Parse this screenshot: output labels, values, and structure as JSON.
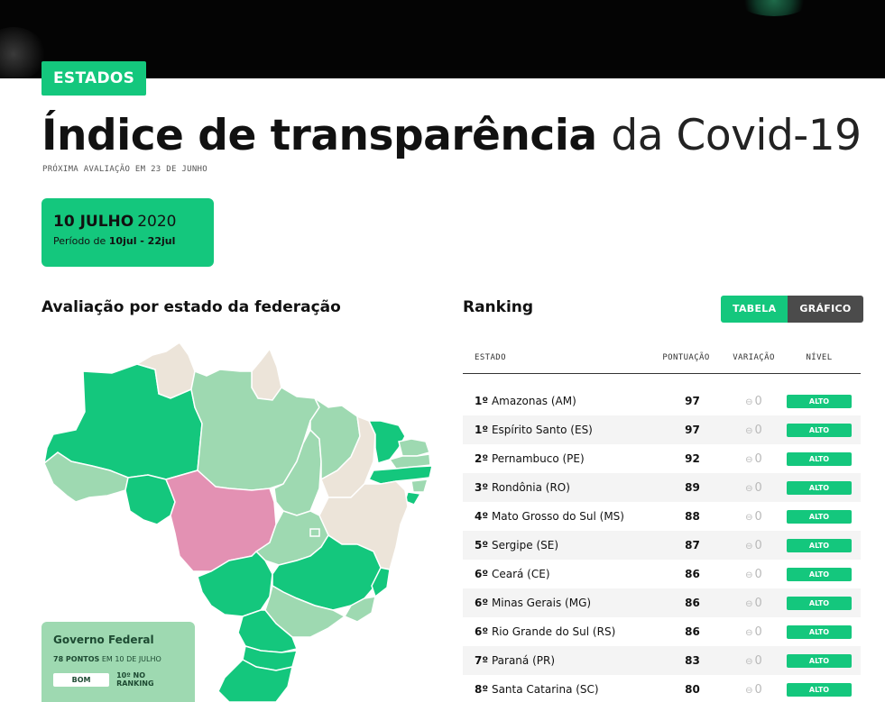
{
  "header": {
    "badge": "ESTADOS",
    "title_bold": "Índice de transparência",
    "title_light": "da Covid-19",
    "next_evaluation": "PRÓXIMA AVALIAÇÃO EM 23 DE JUNHO"
  },
  "period": {
    "date_bold": "10 JULHO",
    "year": "2020",
    "range_prefix": "Período de",
    "range_value": "10jul - 22jul"
  },
  "map_section": {
    "title": "Avaliação por estado da federação"
  },
  "federal": {
    "name": "Governo Federal",
    "points_bold": "78 PONTOS",
    "points_rest": "EM 10 DE JULHO",
    "rating": "BOM",
    "ranking": "10º NO RANKING"
  },
  "ranking": {
    "title": "Ranking",
    "toggle": {
      "table": "TABELA",
      "chart": "GRÁFICO"
    },
    "columns": {
      "state": "ESTADO",
      "score": "PONTUAÇÃO",
      "variation": "VARIAÇÃO",
      "level": "NÍVEL"
    },
    "rows": [
      {
        "pos": "1º",
        "state": "Amazonas (AM)",
        "score": "97",
        "variation": "0",
        "level": "ALTO"
      },
      {
        "pos": "1º",
        "state": "Espírito Santo (ES)",
        "score": "97",
        "variation": "0",
        "level": "ALTO"
      },
      {
        "pos": "2º",
        "state": "Pernambuco (PE)",
        "score": "92",
        "variation": "0",
        "level": "ALTO"
      },
      {
        "pos": "3º",
        "state": "Rondônia (RO)",
        "score": "89",
        "variation": "0",
        "level": "ALTO"
      },
      {
        "pos": "4º",
        "state": "Mato Grosso do Sul (MS)",
        "score": "88",
        "variation": "0",
        "level": "ALTO"
      },
      {
        "pos": "5º",
        "state": "Sergipe (SE)",
        "score": "87",
        "variation": "0",
        "level": "ALTO"
      },
      {
        "pos": "6º",
        "state": "Ceará (CE)",
        "score": "86",
        "variation": "0",
        "level": "ALTO"
      },
      {
        "pos": "6º",
        "state": "Minas Gerais (MG)",
        "score": "86",
        "variation": "0",
        "level": "ALTO"
      },
      {
        "pos": "6º",
        "state": "Rio Grande do Sul (RS)",
        "score": "86",
        "variation": "0",
        "level": "ALTO"
      },
      {
        "pos": "7º",
        "state": "Paraná (PR)",
        "score": "83",
        "variation": "0",
        "level": "ALTO"
      },
      {
        "pos": "8º",
        "state": "Santa Catarina (SC)",
        "score": "80",
        "variation": "0",
        "level": "ALTO"
      }
    ]
  },
  "colors": {
    "accent": "#14c77d",
    "high": "#14c77d",
    "good": "#9ed9b1",
    "low": "#ece4d9",
    "critical": "#e391b3",
    "topbar": "#040404"
  }
}
